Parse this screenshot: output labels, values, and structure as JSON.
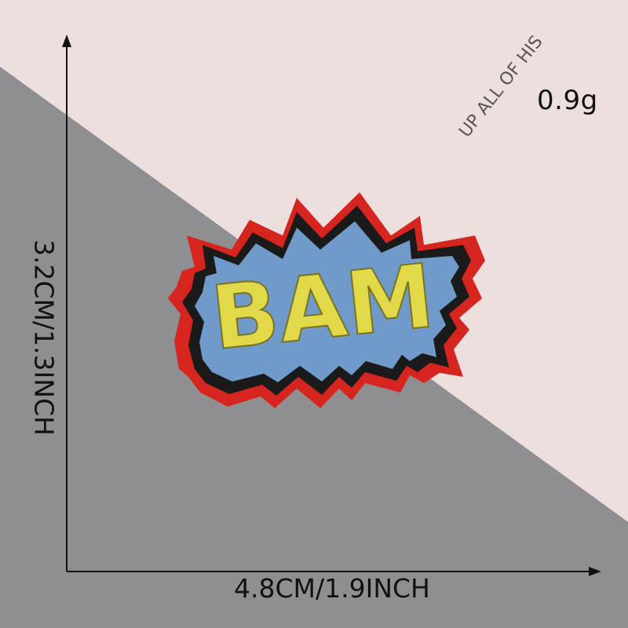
{
  "weight_label": "0.9g",
  "width_label": "4.8CM/1.9INCH",
  "height_label": "3.2CM/1.3INCH",
  "background_text": "UP ALL OF HIS",
  "patch_text": "BAM",
  "colors": {
    "pink_surface": "#eedfdf",
    "gray_surface": "#8f8f91",
    "patch_border": "#d6241f",
    "patch_outline": "#1a1a1a",
    "patch_fill": "#6f9ac9",
    "patch_text": "#e1d84a"
  }
}
